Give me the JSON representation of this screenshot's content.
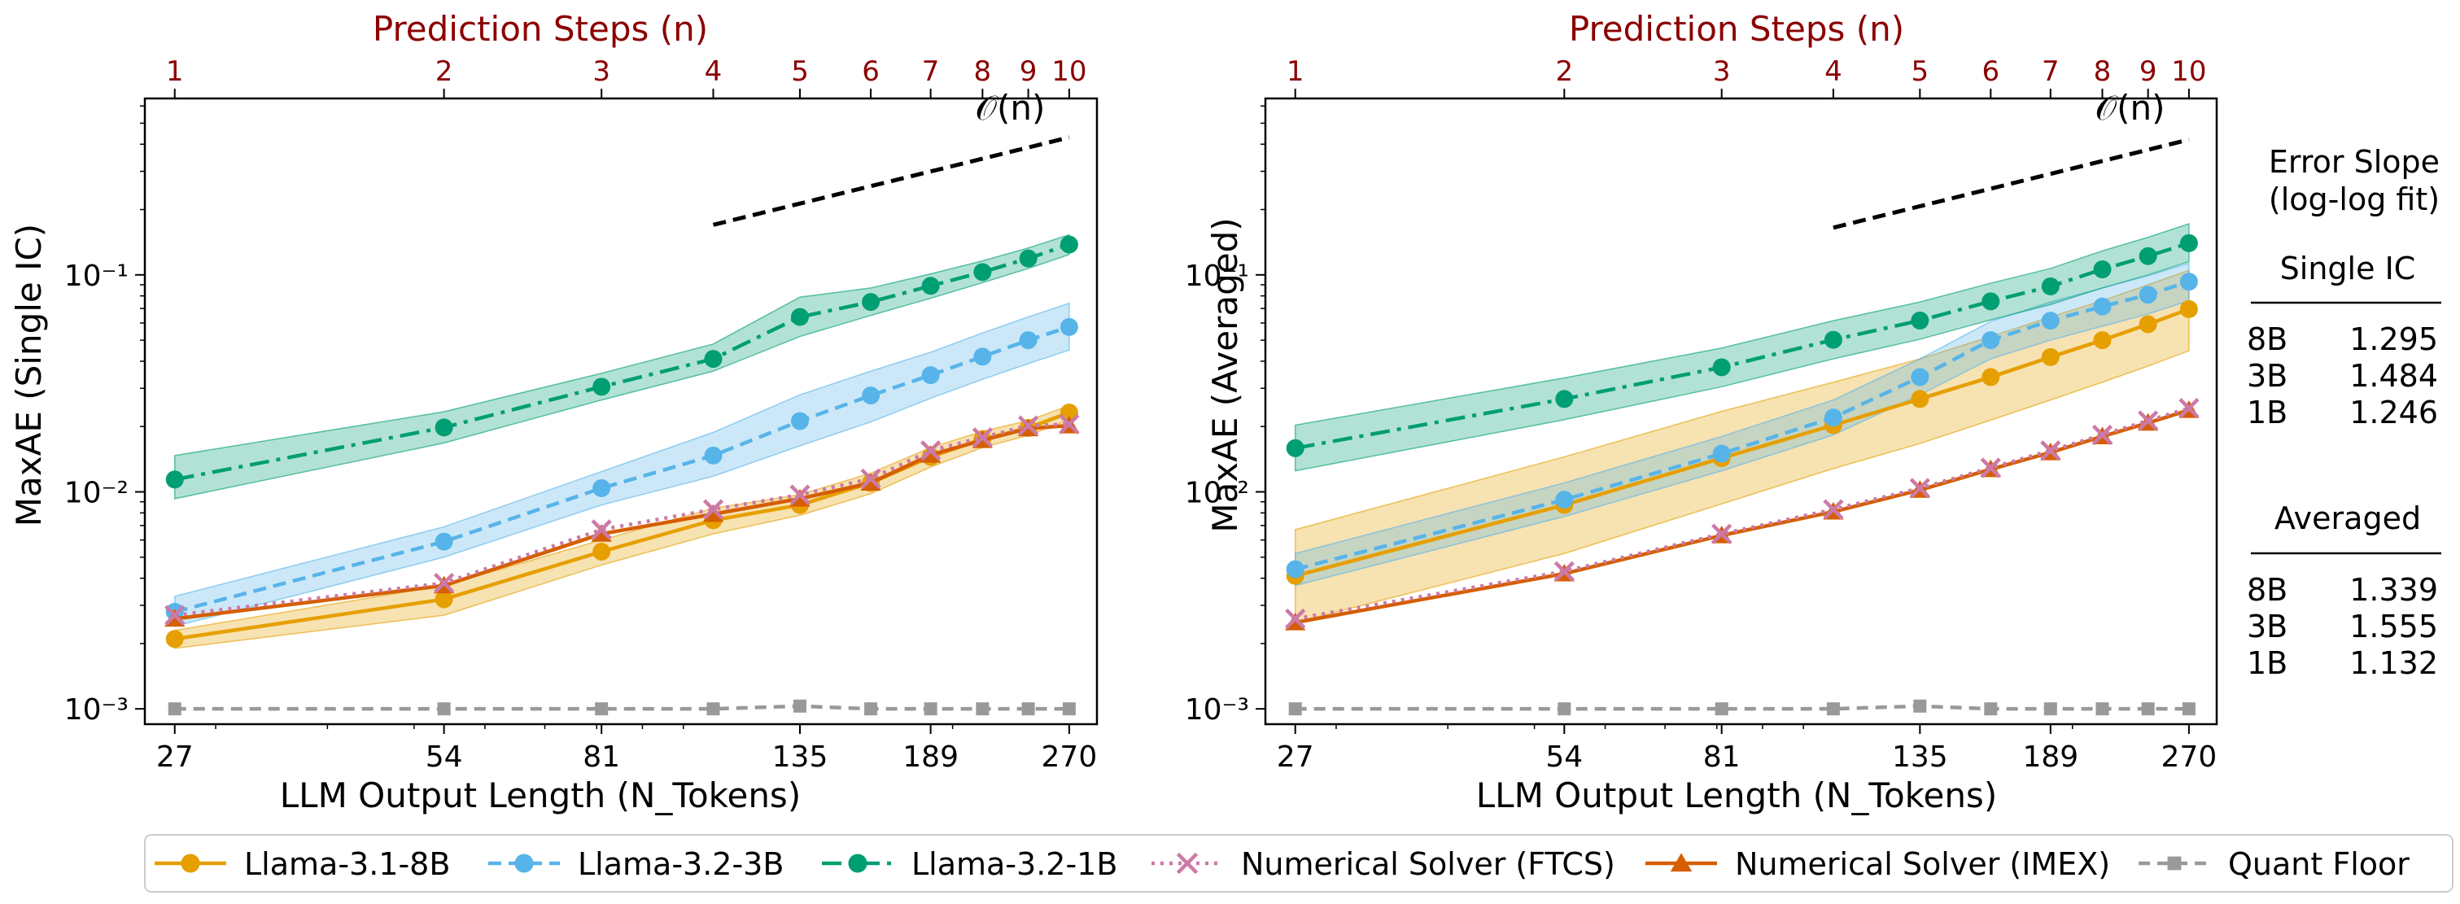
{
  "colors": {
    "llama8b": "#E69F00",
    "llama3b": "#56B4E9",
    "llama1b": "#009E73",
    "ftcs": "#CC79A7",
    "imex": "#D55E00",
    "quant": "#999999",
    "top_axis": "#8B0000"
  },
  "chart_data": [
    {
      "type": "line",
      "panel": "left",
      "title": "",
      "top_xlabel": "Prediction Steps (n)",
      "xlabel": "LLM Output Length (N_Tokens)",
      "ylabel": "MaxAE (Single IC)",
      "xscale": "log",
      "yscale": "log",
      "xlim": [
        25,
        290
      ],
      "ylim": [
        0.00085,
        0.65
      ],
      "x": [
        27,
        54,
        81,
        108,
        135,
        162,
        189,
        216,
        243,
        270
      ],
      "top_ticks": [
        "1",
        "2",
        "3",
        "4",
        "5",
        "6",
        "7",
        "8",
        "9",
        "10"
      ],
      "x_ticks": [
        27,
        54,
        81,
        135,
        189,
        270
      ],
      "x_tick_labels": [
        "27",
        "54",
        "81",
        "135",
        "189",
        "270"
      ],
      "y_ticks": [
        0.001,
        0.01,
        0.1
      ],
      "y_tick_labels": [
        "10⁻³",
        "10⁻²",
        "10⁻¹"
      ],
      "grid": false,
      "series": [
        {
          "name": "Llama-3.1-8B",
          "key": "llama8b",
          "values": [
            0.0021,
            0.0032,
            0.0053,
            0.0074,
            0.0087,
            0.011,
            0.0145,
            0.0175,
            0.0197,
            0.0232
          ],
          "lower": [
            0.0019,
            0.0027,
            0.0046,
            0.0064,
            0.0078,
            0.0098,
            0.013,
            0.016,
            0.0182,
            0.0215
          ],
          "upper": [
            0.0023,
            0.0037,
            0.006,
            0.0084,
            0.0097,
            0.0122,
            0.016,
            0.019,
            0.0213,
            0.025
          ]
        },
        {
          "name": "Llama-3.2-3B",
          "key": "llama3b",
          "values": [
            0.0028,
            0.0059,
            0.0104,
            0.0147,
            0.0212,
            0.0278,
            0.0345,
            0.042,
            0.05,
            0.0575
          ],
          "lower": [
            0.0024,
            0.005,
            0.0087,
            0.0118,
            0.0163,
            0.021,
            0.027,
            0.033,
            0.039,
            0.045
          ],
          "upper": [
            0.0033,
            0.0069,
            0.0124,
            0.0188,
            0.028,
            0.036,
            0.044,
            0.054,
            0.064,
            0.074
          ]
        },
        {
          "name": "Llama-3.2-1B",
          "key": "llama1b",
          "values": [
            0.0114,
            0.0198,
            0.0305,
            0.041,
            0.064,
            0.075,
            0.089,
            0.103,
            0.119,
            0.138
          ],
          "lower": [
            0.0093,
            0.0168,
            0.0265,
            0.036,
            0.052,
            0.065,
            0.078,
            0.092,
            0.107,
            0.124
          ],
          "upper": [
            0.0147,
            0.0234,
            0.0352,
            0.048,
            0.079,
            0.087,
            0.101,
            0.116,
            0.133,
            0.153
          ]
        },
        {
          "name": "Numerical Solver (FTCS)",
          "key": "ftcs",
          "values": [
            0.0027,
            0.0038,
            0.0067,
            0.0083,
            0.0097,
            0.0115,
            0.0155,
            0.0178,
            0.0202,
            0.0205
          ]
        },
        {
          "name": "Numerical Solver (IMEX)",
          "key": "imex",
          "values": [
            0.0026,
            0.0037,
            0.0064,
            0.0079,
            0.0093,
            0.011,
            0.0148,
            0.0173,
            0.0196,
            0.0202
          ]
        },
        {
          "name": "Quant Floor",
          "key": "quant",
          "values": [
            0.001,
            0.001,
            0.001,
            0.001,
            0.00103,
            0.001,
            0.001,
            0.001,
            0.001,
            0.001
          ]
        }
      ],
      "reference": {
        "label": "𝒪(n)",
        "x": [
          108,
          270
        ],
        "y": [
          0.17,
          0.43
        ]
      }
    },
    {
      "type": "line",
      "panel": "right",
      "title": "",
      "top_xlabel": "Prediction Steps (n)",
      "xlabel": "LLM Output Length (N_Tokens)",
      "ylabel": "MaxAE (Averaged)",
      "xscale": "log",
      "yscale": "log",
      "xlim": [
        25,
        290
      ],
      "ylim": [
        0.00085,
        0.65
      ],
      "x": [
        27,
        54,
        81,
        108,
        135,
        162,
        189,
        216,
        243,
        270
      ],
      "top_ticks": [
        "1",
        "2",
        "3",
        "4",
        "5",
        "6",
        "7",
        "8",
        "9",
        "10"
      ],
      "x_ticks": [
        27,
        54,
        81,
        135,
        189,
        270
      ],
      "x_tick_labels": [
        "27",
        "54",
        "81",
        "135",
        "189",
        "270"
      ],
      "y_ticks": [
        0.001,
        0.01,
        0.1
      ],
      "y_tick_labels": [
        "10⁻³",
        "10⁻²",
        "10⁻¹"
      ],
      "grid": false,
      "series": [
        {
          "name": "Llama-3.1-8B",
          "key": "llama8b",
          "values": [
            0.0041,
            0.0087,
            0.0143,
            0.0203,
            0.0268,
            0.0338,
            0.0418,
            0.05,
            0.0592,
            0.0695
          ],
          "lower": [
            0.0025,
            0.0052,
            0.0088,
            0.0128,
            0.0167,
            0.0214,
            0.0265,
            0.032,
            0.038,
            0.0447
          ],
          "upper": [
            0.0067,
            0.0145,
            0.0235,
            0.032,
            0.041,
            0.052,
            0.064,
            0.076,
            0.09,
            0.105
          ]
        },
        {
          "name": "Llama-3.2-3B",
          "key": "llama3b",
          "values": [
            0.0044,
            0.0092,
            0.015,
            0.022,
            0.0338,
            0.05,
            0.0615,
            0.0715,
            0.081,
            0.093
          ],
          "lower": [
            0.0037,
            0.0077,
            0.0125,
            0.0183,
            0.028,
            0.041,
            0.05,
            0.058,
            0.066,
            0.076
          ],
          "upper": [
            0.0052,
            0.011,
            0.018,
            0.0265,
            0.041,
            0.061,
            0.075,
            0.087,
            0.099,
            0.113
          ]
        },
        {
          "name": "Llama-3.2-1B",
          "key": "llama1b",
          "values": [
            0.0159,
            0.0268,
            0.0375,
            0.0502,
            0.0616,
            0.0755,
            0.0885,
            0.106,
            0.122,
            0.14
          ],
          "lower": [
            0.0125,
            0.0215,
            0.0305,
            0.041,
            0.0505,
            0.062,
            0.073,
            0.087,
            0.1,
            0.115
          ],
          "upper": [
            0.0203,
            0.0335,
            0.046,
            0.0615,
            0.075,
            0.0915,
            0.107,
            0.129,
            0.149,
            0.172
          ]
        },
        {
          "name": "Numerical Solver (FTCS)",
          "key": "ftcs",
          "values": [
            0.0026,
            0.0043,
            0.0064,
            0.0083,
            0.0104,
            0.0129,
            0.0155,
            0.0183,
            0.0213,
            0.0243
          ]
        },
        {
          "name": "Numerical Solver (IMEX)",
          "key": "imex",
          "values": [
            0.0025,
            0.0042,
            0.0063,
            0.0081,
            0.0102,
            0.0127,
            0.0152,
            0.018,
            0.0208,
            0.0238
          ]
        },
        {
          "name": "Quant Floor",
          "key": "quant",
          "values": [
            0.001,
            0.001,
            0.001,
            0.001,
            0.00103,
            0.001,
            0.001,
            0.001,
            0.001,
            0.001
          ]
        }
      ],
      "reference": {
        "label": "𝒪(n)",
        "x": [
          108,
          270
        ],
        "y": [
          0.165,
          0.42
        ]
      }
    }
  ],
  "slope_table": {
    "title_line1": "Error Slope",
    "title_line2": "(log-log fit)",
    "sections": [
      {
        "header": "Single IC",
        "rows": [
          {
            "model": "8B",
            "value": "1.295"
          },
          {
            "model": "3B",
            "value": "1.484"
          },
          {
            "model": "1B",
            "value": "1.246"
          }
        ]
      },
      {
        "header": "Averaged",
        "rows": [
          {
            "model": "8B",
            "value": "1.339"
          },
          {
            "model": "3B",
            "value": "1.555"
          },
          {
            "model": "1B",
            "value": "1.132"
          }
        ]
      }
    ]
  },
  "legend": {
    "entries": [
      {
        "key": "llama8b",
        "label": "Llama-3.1-8B"
      },
      {
        "key": "llama3b",
        "label": "Llama-3.2-3B"
      },
      {
        "key": "llama1b",
        "label": "Llama-3.2-1B"
      },
      {
        "key": "ftcs",
        "label": "Numerical Solver (FTCS)"
      },
      {
        "key": "imex",
        "label": "Numerical Solver (IMEX)"
      },
      {
        "key": "quant",
        "label": "Quant Floor"
      }
    ]
  }
}
